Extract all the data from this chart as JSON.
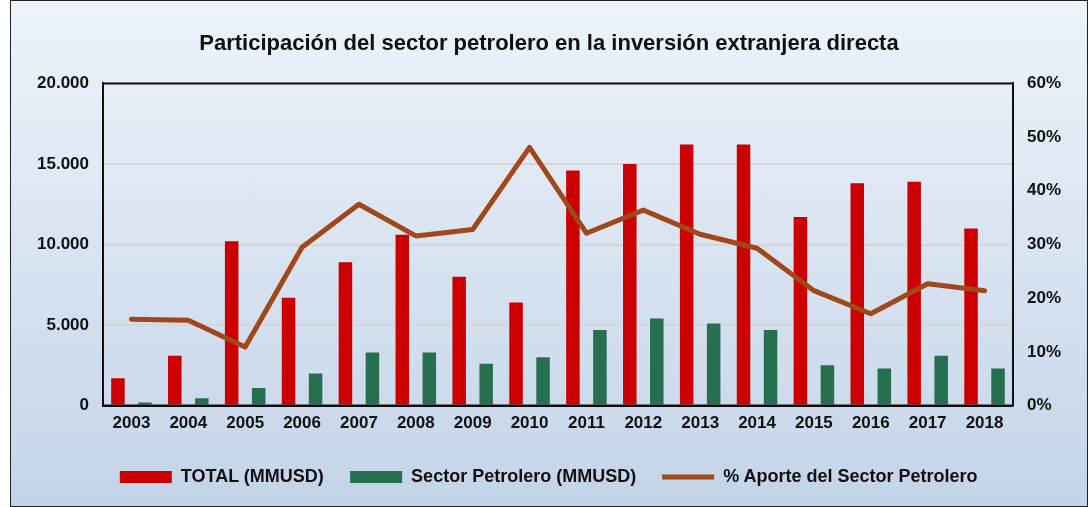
{
  "chart_data": {
    "type": "bar",
    "title": "Participación del sector petrolero en la inversión extranjera directa",
    "categories": [
      "2003",
      "2004",
      "2005",
      "2006",
      "2007",
      "2008",
      "2009",
      "2010",
      "2011",
      "2012",
      "2013",
      "2014",
      "2015",
      "2016",
      "2017",
      "2018"
    ],
    "series": [
      {
        "name": "TOTAL (MMUSD)",
        "color": "#cc0000",
        "values": [
          1700,
          3100,
          10200,
          6700,
          8900,
          10600,
          8000,
          6400,
          14600,
          15000,
          16200,
          16200,
          11700,
          13800,
          13900,
          11000
        ]
      },
      {
        "name": "Sector Petrolero (MMUSD)",
        "color": "#267050",
        "values": [
          200,
          450,
          1100,
          2000,
          3300,
          3300,
          2600,
          3000,
          4700,
          5400,
          5100,
          4700,
          2500,
          2300,
          3100,
          2300
        ]
      },
      {
        "name": "% Aporte del Sector Petrolero",
        "type": "line",
        "axis": "y2",
        "color": "#a0481a",
        "values": [
          16.1,
          15.9,
          10.9,
          29.5,
          37.5,
          31.6,
          32.8,
          48.1,
          32.1,
          36.4,
          31.9,
          29.3,
          21.4,
          17.1,
          22.7,
          21.4
        ]
      }
    ],
    "ylim": [
      0,
      20000
    ],
    "yticks": [
      {
        "value": 0,
        "label": "0"
      },
      {
        "value": 5000,
        "label": "5.000"
      },
      {
        "value": 10000,
        "label": "10.000"
      },
      {
        "value": 15000,
        "label": "15.000"
      },
      {
        "value": 20000,
        "label": "20.000"
      }
    ],
    "y2lim": [
      0,
      60
    ],
    "y2ticks": [
      {
        "value": 0,
        "label": "0%"
      },
      {
        "value": 10,
        "label": "10%"
      },
      {
        "value": 20,
        "label": "20%"
      },
      {
        "value": 30,
        "label": "30%"
      },
      {
        "value": 40,
        "label": "40%"
      },
      {
        "value": 50,
        "label": "50%"
      },
      {
        "value": 60,
        "label": "60%"
      }
    ],
    "grid": "y",
    "legend": "bottom",
    "marker": "none",
    "line_style": "solid"
  }
}
